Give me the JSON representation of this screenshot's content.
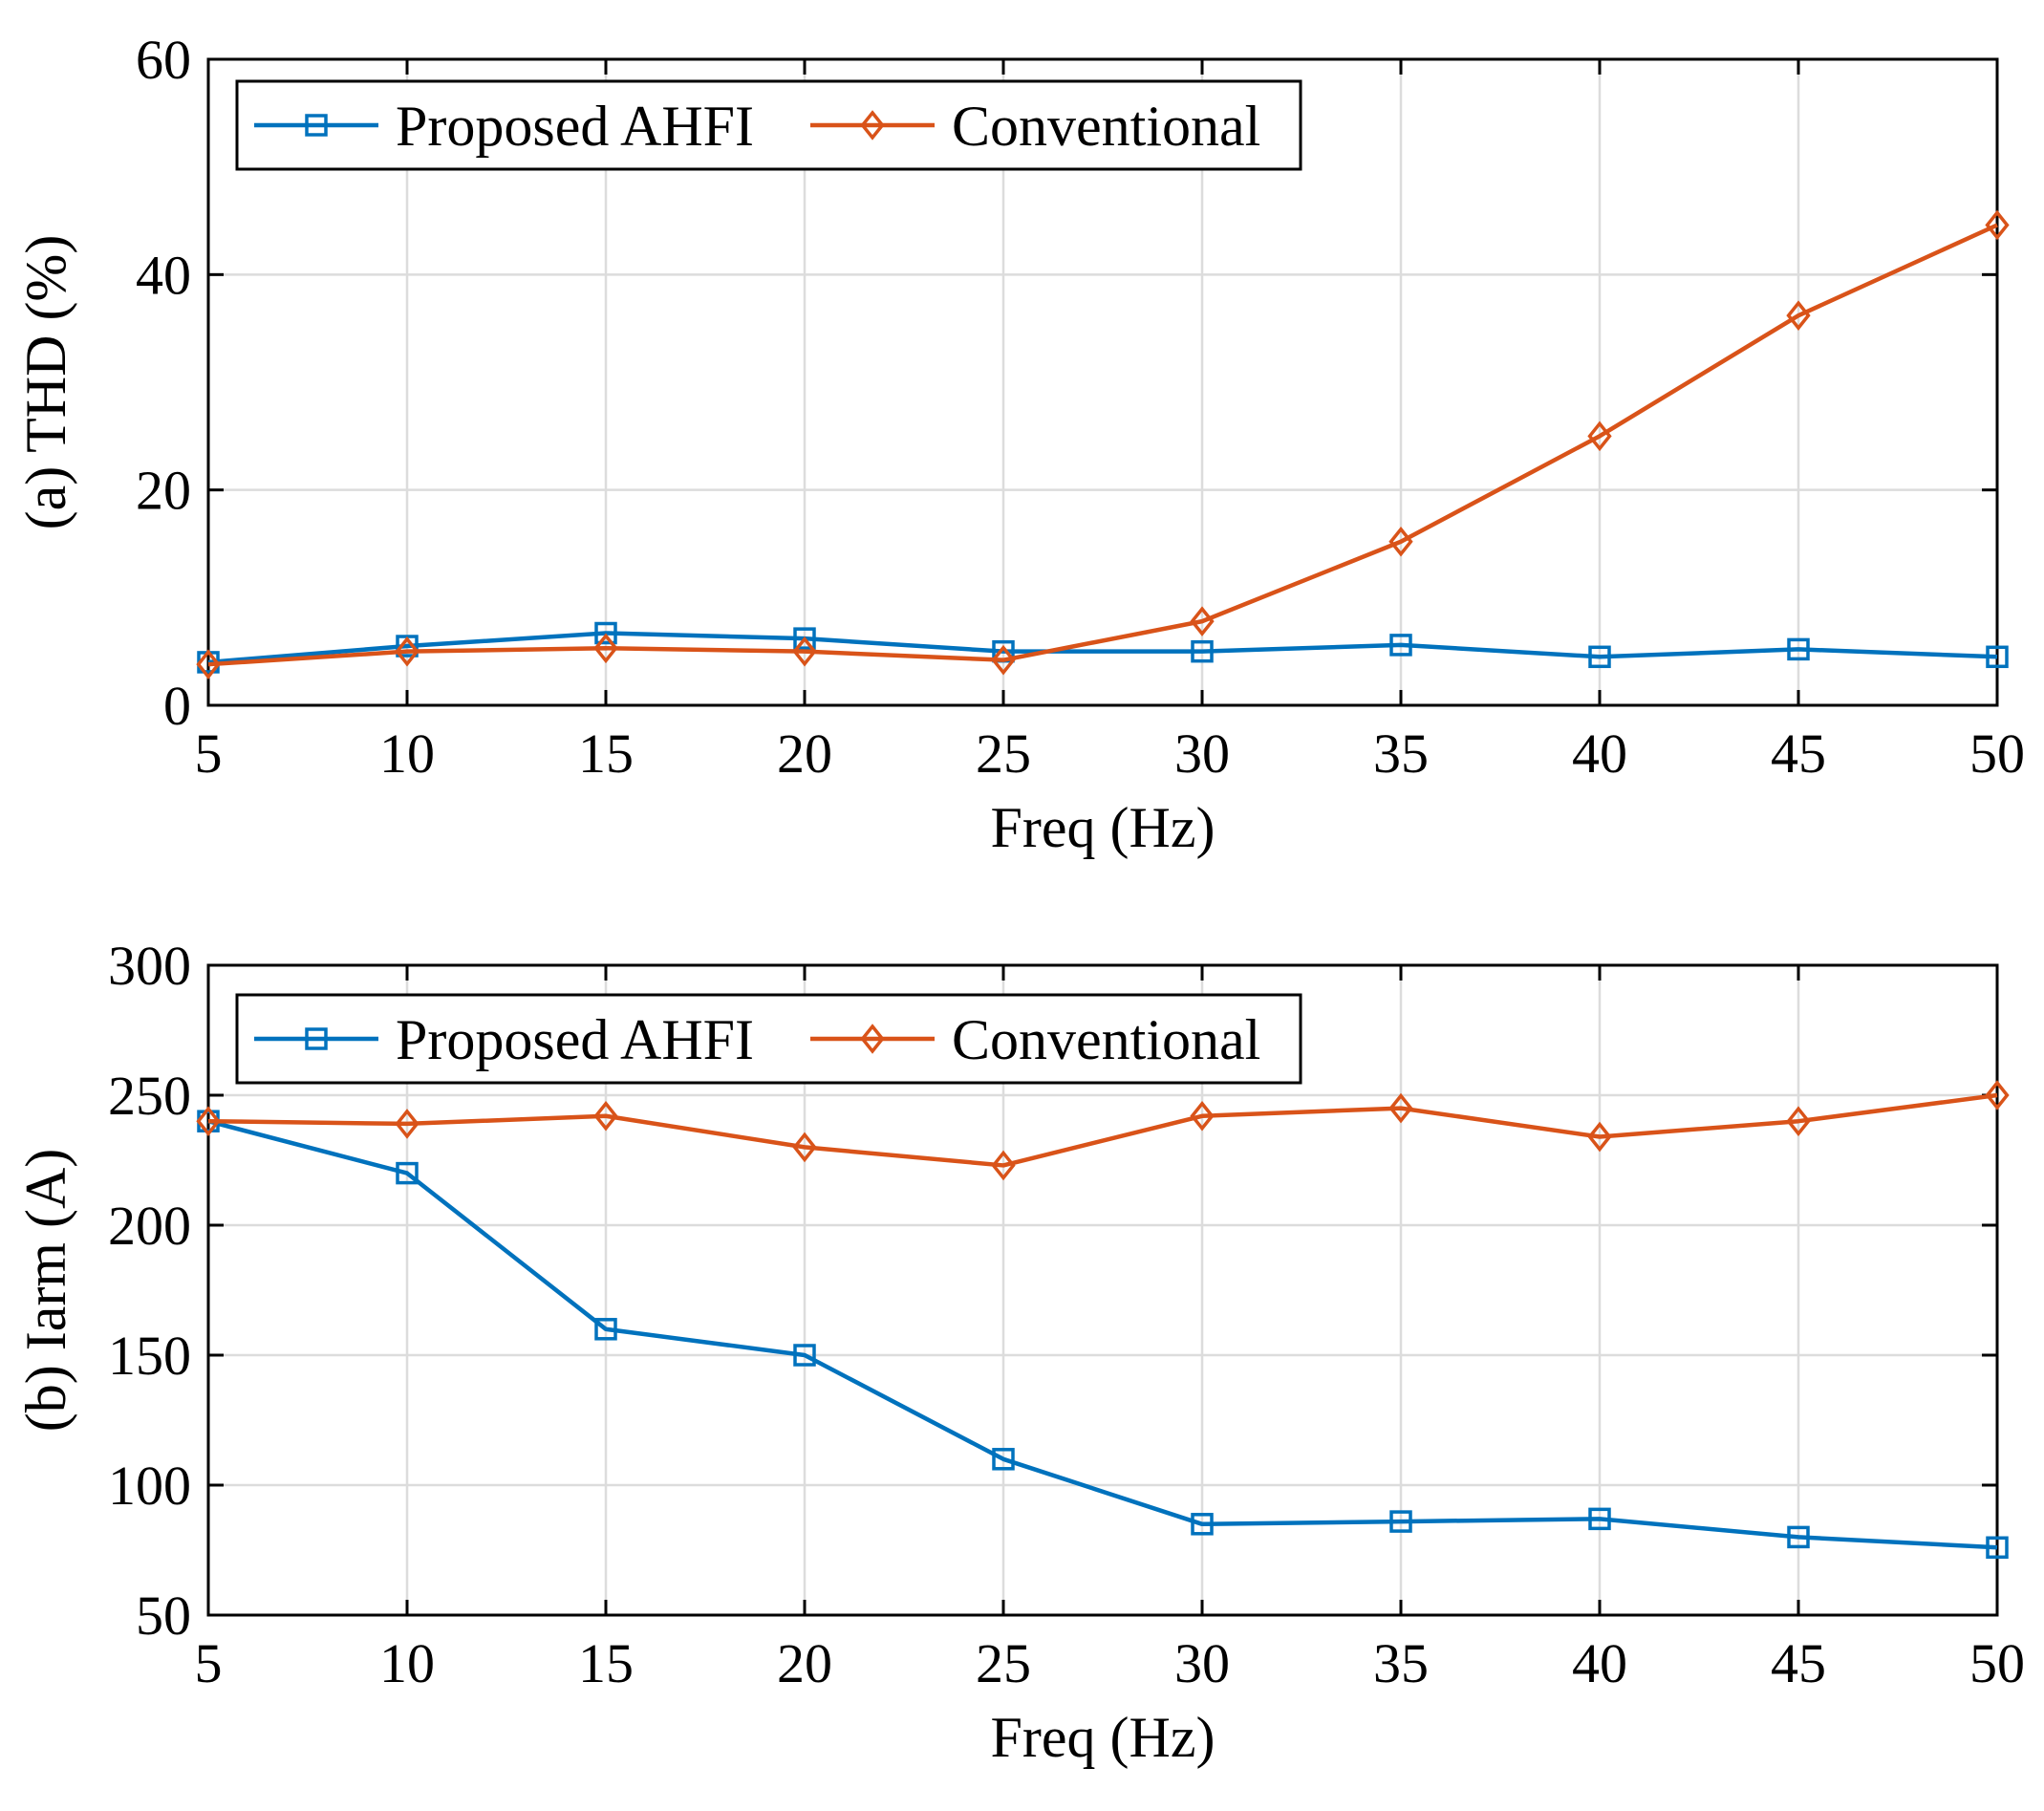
{
  "chart_data": [
    {
      "type": "line",
      "ylabel": "(a) THD (%)",
      "xlabel": "Freq (Hz)",
      "x": [
        5,
        10,
        15,
        20,
        25,
        30,
        35,
        40,
        45,
        50
      ],
      "xlim": [
        5,
        50
      ],
      "ylim": [
        0,
        60
      ],
      "xticks": [
        "5",
        "10",
        "15",
        "20",
        "25",
        "30",
        "35",
        "40",
        "45",
        "50"
      ],
      "yticks": [
        "0",
        "20",
        "40",
        "60"
      ],
      "grid": true,
      "legend_position": "top-left",
      "series": [
        {
          "name": "Proposed AHFI",
          "marker": "square",
          "color": "#0072BD",
          "values": [
            4.0,
            5.5,
            6.7,
            6.2,
            5.0,
            5.0,
            5.6,
            4.5,
            5.2,
            4.5
          ]
        },
        {
          "name": "Conventional",
          "marker": "diamond",
          "color": "#D95319",
          "values": [
            3.8,
            5.0,
            5.3,
            5.0,
            4.2,
            7.8,
            15.2,
            25.0,
            36.2,
            44.6
          ]
        }
      ]
    },
    {
      "type": "line",
      "ylabel": "(b) Iarm (A)",
      "xlabel": "Freq (Hz)",
      "x": [
        5,
        10,
        15,
        20,
        25,
        30,
        35,
        40,
        45,
        50
      ],
      "xlim": [
        5,
        50
      ],
      "ylim": [
        50,
        300
      ],
      "xticks": [
        "5",
        "10",
        "15",
        "20",
        "25",
        "30",
        "35",
        "40",
        "45",
        "50"
      ],
      "yticks": [
        "50",
        "100",
        "150",
        "200",
        "250",
        "300"
      ],
      "grid": true,
      "legend_position": "top-left",
      "series": [
        {
          "name": "Proposed AHFI",
          "marker": "square",
          "color": "#0072BD",
          "values": [
            240,
            220,
            160,
            150,
            110,
            85,
            86,
            87,
            80,
            76
          ]
        },
        {
          "name": "Conventional",
          "marker": "diamond",
          "color": "#D95319",
          "values": [
            240,
            239,
            242,
            230,
            223,
            242,
            245,
            234,
            240,
            250
          ]
        }
      ]
    }
  ]
}
